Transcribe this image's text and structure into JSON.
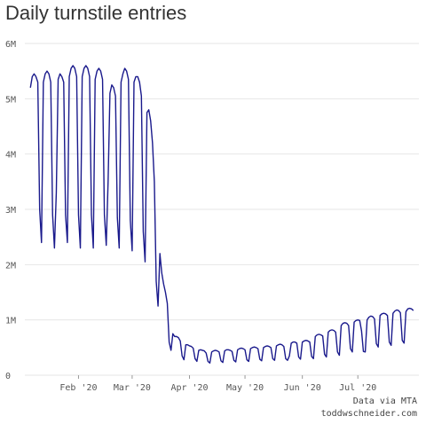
{
  "chart_data": {
    "type": "line",
    "title": "Daily turnstile entries",
    "xlabel": "",
    "ylabel": "",
    "x_range": [
      "2020-01-06",
      "2020-07-31"
    ],
    "ylim": [
      0,
      6000000
    ],
    "y_ticks": [
      {
        "value": 0,
        "label": "0"
      },
      {
        "value": 1000000,
        "label": "1M"
      },
      {
        "value": 2000000,
        "label": "2M"
      },
      {
        "value": 3000000,
        "label": "3M"
      },
      {
        "value": 4000000,
        "label": "4M"
      },
      {
        "value": 5000000,
        "label": "5M"
      },
      {
        "value": 6000000,
        "label": "6M"
      }
    ],
    "x_ticks": [
      {
        "date": "2020-02-01",
        "label": "Feb '20"
      },
      {
        "date": "2020-03-01",
        "label": "Mar '20"
      },
      {
        "date": "2020-04-01",
        "label": "Apr '20"
      },
      {
        "date": "2020-05-01",
        "label": "May '20"
      },
      {
        "date": "2020-06-01",
        "label": "Jun '20"
      },
      {
        "date": "2020-07-01",
        "label": "Jul '20"
      }
    ],
    "grid": "horizontal",
    "line_color": "#1a1a8c",
    "series": [
      {
        "points": [
          [
            "2020-01-06",
            5200000
          ],
          [
            "2020-01-07",
            5400000
          ],
          [
            "2020-01-08",
            5450000
          ],
          [
            "2020-01-09",
            5400000
          ],
          [
            "2020-01-10",
            5300000
          ],
          [
            "2020-01-11",
            3000000
          ],
          [
            "2020-01-12",
            2400000
          ],
          [
            "2020-01-13",
            5300000
          ],
          [
            "2020-01-14",
            5450000
          ],
          [
            "2020-01-15",
            5500000
          ],
          [
            "2020-01-16",
            5450000
          ],
          [
            "2020-01-17",
            5300000
          ],
          [
            "2020-01-18",
            2900000
          ],
          [
            "2020-01-19",
            2300000
          ],
          [
            "2020-01-20",
            3300000
          ],
          [
            "2020-01-21",
            5350000
          ],
          [
            "2020-01-22",
            5450000
          ],
          [
            "2020-01-23",
            5400000
          ],
          [
            "2020-01-24",
            5300000
          ],
          [
            "2020-01-25",
            2900000
          ],
          [
            "2020-01-26",
            2400000
          ],
          [
            "2020-01-27",
            5400000
          ],
          [
            "2020-01-28",
            5550000
          ],
          [
            "2020-01-29",
            5600000
          ],
          [
            "2020-01-30",
            5550000
          ],
          [
            "2020-01-31",
            5400000
          ],
          [
            "2020-02-01",
            2900000
          ],
          [
            "2020-02-02",
            2300000
          ],
          [
            "2020-02-03",
            5400000
          ],
          [
            "2020-02-04",
            5550000
          ],
          [
            "2020-02-05",
            5600000
          ],
          [
            "2020-02-06",
            5550000
          ],
          [
            "2020-02-07",
            5400000
          ],
          [
            "2020-02-08",
            2900000
          ],
          [
            "2020-02-09",
            2300000
          ],
          [
            "2020-02-10",
            5350000
          ],
          [
            "2020-02-11",
            5500000
          ],
          [
            "2020-02-12",
            5550000
          ],
          [
            "2020-02-13",
            5500000
          ],
          [
            "2020-02-14",
            5350000
          ],
          [
            "2020-02-15",
            2900000
          ],
          [
            "2020-02-16",
            2350000
          ],
          [
            "2020-02-17",
            3500000
          ],
          [
            "2020-02-18",
            5100000
          ],
          [
            "2020-02-19",
            5250000
          ],
          [
            "2020-02-20",
            5200000
          ],
          [
            "2020-02-21",
            5050000
          ],
          [
            "2020-02-22",
            2850000
          ],
          [
            "2020-02-23",
            2300000
          ],
          [
            "2020-02-24",
            5300000
          ],
          [
            "2020-02-25",
            5450000
          ],
          [
            "2020-02-26",
            5550000
          ],
          [
            "2020-02-27",
            5500000
          ],
          [
            "2020-02-28",
            5350000
          ],
          [
            "2020-02-29",
            2800000
          ],
          [
            "2020-03-01",
            2250000
          ],
          [
            "2020-03-02",
            5300000
          ],
          [
            "2020-03-03",
            5400000
          ],
          [
            "2020-03-04",
            5400000
          ],
          [
            "2020-03-05",
            5300000
          ],
          [
            "2020-03-06",
            5050000
          ],
          [
            "2020-03-07",
            2600000
          ],
          [
            "2020-03-08",
            2050000
          ],
          [
            "2020-03-09",
            4750000
          ],
          [
            "2020-03-10",
            4800000
          ],
          [
            "2020-03-11",
            4600000
          ],
          [
            "2020-03-12",
            4200000
          ],
          [
            "2020-03-13",
            3500000
          ],
          [
            "2020-03-14",
            1700000
          ],
          [
            "2020-03-15",
            1250000
          ],
          [
            "2020-03-16",
            2200000
          ],
          [
            "2020-03-17",
            1850000
          ],
          [
            "2020-03-18",
            1650000
          ],
          [
            "2020-03-19",
            1500000
          ],
          [
            "2020-03-20",
            1300000
          ],
          [
            "2020-03-21",
            600000
          ],
          [
            "2020-03-22",
            450000
          ],
          [
            "2020-03-23",
            750000
          ],
          [
            "2020-03-24",
            700000
          ],
          [
            "2020-03-25",
            700000
          ],
          [
            "2020-03-26",
            680000
          ],
          [
            "2020-03-27",
            620000
          ],
          [
            "2020-03-28",
            350000
          ],
          [
            "2020-03-29",
            280000
          ],
          [
            "2020-03-30",
            550000
          ],
          [
            "2020-03-31",
            550000
          ],
          [
            "2020-04-01",
            530000
          ],
          [
            "2020-04-02",
            520000
          ],
          [
            "2020-04-03",
            490000
          ],
          [
            "2020-04-04",
            300000
          ],
          [
            "2020-04-05",
            250000
          ],
          [
            "2020-04-06",
            450000
          ],
          [
            "2020-04-07",
            460000
          ],
          [
            "2020-04-08",
            450000
          ],
          [
            "2020-04-09",
            440000
          ],
          [
            "2020-04-10",
            400000
          ],
          [
            "2020-04-11",
            250000
          ],
          [
            "2020-04-12",
            220000
          ],
          [
            "2020-04-13",
            420000
          ],
          [
            "2020-04-14",
            440000
          ],
          [
            "2020-04-15",
            450000
          ],
          [
            "2020-04-16",
            440000
          ],
          [
            "2020-04-17",
            420000
          ],
          [
            "2020-04-18",
            260000
          ],
          [
            "2020-04-19",
            230000
          ],
          [
            "2020-04-20",
            440000
          ],
          [
            "2020-04-21",
            460000
          ],
          [
            "2020-04-22",
            460000
          ],
          [
            "2020-04-23",
            450000
          ],
          [
            "2020-04-24",
            430000
          ],
          [
            "2020-04-25",
            270000
          ],
          [
            "2020-04-26",
            240000
          ],
          [
            "2020-04-27",
            460000
          ],
          [
            "2020-04-28",
            480000
          ],
          [
            "2020-04-29",
            490000
          ],
          [
            "2020-04-30",
            480000
          ],
          [
            "2020-05-01",
            460000
          ],
          [
            "2020-05-02",
            280000
          ],
          [
            "2020-05-03",
            250000
          ],
          [
            "2020-05-04",
            480000
          ],
          [
            "2020-05-05",
            500000
          ],
          [
            "2020-05-06",
            510000
          ],
          [
            "2020-05-07",
            500000
          ],
          [
            "2020-05-08",
            480000
          ],
          [
            "2020-05-09",
            290000
          ],
          [
            "2020-05-10",
            260000
          ],
          [
            "2020-05-11",
            500000
          ],
          [
            "2020-05-12",
            520000
          ],
          [
            "2020-05-13",
            530000
          ],
          [
            "2020-05-14",
            520000
          ],
          [
            "2020-05-15",
            500000
          ],
          [
            "2020-05-16",
            300000
          ],
          [
            "2020-05-17",
            270000
          ],
          [
            "2020-05-18",
            530000
          ],
          [
            "2020-05-19",
            550000
          ],
          [
            "2020-05-20",
            560000
          ],
          [
            "2020-05-21",
            550000
          ],
          [
            "2020-05-22",
            520000
          ],
          [
            "2020-05-23",
            300000
          ],
          [
            "2020-05-24",
            270000
          ],
          [
            "2020-05-25",
            350000
          ],
          [
            "2020-05-26",
            580000
          ],
          [
            "2020-05-27",
            600000
          ],
          [
            "2020-05-28",
            600000
          ],
          [
            "2020-05-29",
            580000
          ],
          [
            "2020-05-30",
            330000
          ],
          [
            "2020-05-31",
            290000
          ],
          [
            "2020-06-01",
            600000
          ],
          [
            "2020-06-02",
            620000
          ],
          [
            "2020-06-03",
            630000
          ],
          [
            "2020-06-04",
            620000
          ],
          [
            "2020-06-05",
            600000
          ],
          [
            "2020-06-06",
            340000
          ],
          [
            "2020-06-07",
            300000
          ],
          [
            "2020-06-08",
            700000
          ],
          [
            "2020-06-09",
            730000
          ],
          [
            "2020-06-10",
            740000
          ],
          [
            "2020-06-11",
            730000
          ],
          [
            "2020-06-12",
            710000
          ],
          [
            "2020-06-13",
            380000
          ],
          [
            "2020-06-14",
            330000
          ],
          [
            "2020-06-15",
            780000
          ],
          [
            "2020-06-16",
            810000
          ],
          [
            "2020-06-17",
            820000
          ],
          [
            "2020-06-18",
            810000
          ],
          [
            "2020-06-19",
            780000
          ],
          [
            "2020-06-20",
            420000
          ],
          [
            "2020-06-21",
            360000
          ],
          [
            "2020-06-22",
            900000
          ],
          [
            "2020-06-23",
            940000
          ],
          [
            "2020-06-24",
            950000
          ],
          [
            "2020-06-25",
            940000
          ],
          [
            "2020-06-26",
            900000
          ],
          [
            "2020-06-27",
            480000
          ],
          [
            "2020-06-28",
            420000
          ],
          [
            "2020-06-29",
            960000
          ],
          [
            "2020-06-30",
            990000
          ],
          [
            "2020-07-01",
            1000000
          ],
          [
            "2020-07-02",
            990000
          ],
          [
            "2020-07-03",
            800000
          ],
          [
            "2020-07-04",
            430000
          ],
          [
            "2020-07-05",
            420000
          ],
          [
            "2020-07-06",
            1000000
          ],
          [
            "2020-07-07",
            1050000
          ],
          [
            "2020-07-08",
            1070000
          ],
          [
            "2020-07-09",
            1060000
          ],
          [
            "2020-07-10",
            1020000
          ],
          [
            "2020-07-11",
            570000
          ],
          [
            "2020-07-12",
            510000
          ],
          [
            "2020-07-13",
            1080000
          ],
          [
            "2020-07-14",
            1110000
          ],
          [
            "2020-07-15",
            1120000
          ],
          [
            "2020-07-16",
            1110000
          ],
          [
            "2020-07-17",
            1080000
          ],
          [
            "2020-07-18",
            600000
          ],
          [
            "2020-07-19",
            540000
          ],
          [
            "2020-07-20",
            1120000
          ],
          [
            "2020-07-21",
            1160000
          ],
          [
            "2020-07-22",
            1180000
          ],
          [
            "2020-07-23",
            1170000
          ],
          [
            "2020-07-24",
            1130000
          ],
          [
            "2020-07-25",
            630000
          ],
          [
            "2020-07-26",
            580000
          ],
          [
            "2020-07-27",
            1150000
          ],
          [
            "2020-07-28",
            1200000
          ],
          [
            "2020-07-29",
            1210000
          ],
          [
            "2020-07-30",
            1200000
          ],
          [
            "2020-07-31",
            1170000
          ]
        ]
      }
    ]
  },
  "source": {
    "line1": "Data via MTA",
    "line2": "toddwschneider.com"
  }
}
